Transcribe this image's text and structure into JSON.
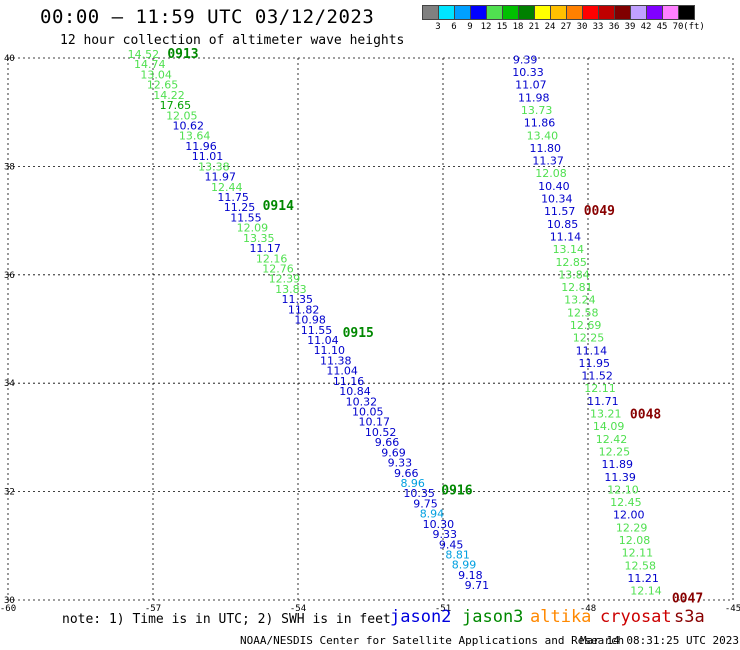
{
  "title": "00:00 – 11:59 UTC 03/12/2023",
  "subtitle": "12 hour collection of altimeter wave heights",
  "color_scale": {
    "labels": [
      "3",
      "6",
      "9",
      "12",
      "15",
      "18",
      "21",
      "24",
      "27",
      "30",
      "33",
      "36",
      "39",
      "42",
      "45",
      "70",
      "(ft)"
    ],
    "colors": [
      "#808080",
      "#00e5ff",
      "#00a0ff",
      "#0000ff",
      "#50e050",
      "#00c000",
      "#008000",
      "#ffff00",
      "#ffc000",
      "#ff8000",
      "#ff0000",
      "#c00000",
      "#800000",
      "#c0a0ff",
      "#8000ff",
      "#ff80ff",
      "#000000"
    ]
  },
  "note": "note: 1) Time is in UTC; 2) SWH is in feet",
  "satellites": [
    {
      "name": "jason2",
      "color": "#0000dd"
    },
    {
      "name": "jason3",
      "color": "#008800"
    },
    {
      "name": "altika",
      "color": "#ff8800"
    },
    {
      "name": "cryosat",
      "color": "#cc0000"
    },
    {
      "name": "s3a",
      "color": "#880000"
    }
  ],
  "footer_credit": "NOAA/NESDIS Center for Satellite Applications and Research",
  "footer_time": "Mar 14 08:31:25 UTC 2023",
  "chart_data": {
    "type": "scatter",
    "xlim": [
      -60,
      -45
    ],
    "ylim": [
      30,
      40
    ],
    "x_ticks": [
      "-60",
      "-57",
      "-54",
      "-51",
      "-48",
      "-45"
    ],
    "y_ticks": [
      "40",
      "38",
      "36",
      "34",
      "32",
      "30"
    ],
    "x_tick_values": [
      -60,
      -57,
      -54,
      -51,
      -48,
      -45
    ],
    "y_tick_values": [
      40,
      38,
      36,
      34,
      32,
      30
    ],
    "tracks": [
      {
        "satellite": "jason3",
        "lon_start": -57.2,
        "lat_start": 40.0,
        "lon_end": -50.3,
        "lat_end": 30.2,
        "times": [
          {
            "label": "0913",
            "lat": 40.0
          },
          {
            "label": "0914",
            "lat": 37.2
          },
          {
            "label": "0915",
            "lat": 34.85
          },
          {
            "label": "0916",
            "lat": 31.95
          }
        ],
        "points": [
          {
            "v": "14.52",
            "c": "#50e050"
          },
          {
            "v": "14.74",
            "c": "#50e050"
          },
          {
            "v": "13.04",
            "c": "#50e050"
          },
          {
            "v": "12.65",
            "c": "#50e050"
          },
          {
            "v": "14.22",
            "c": "#50e050"
          },
          {
            "v": "17.65",
            "c": "#00a000"
          },
          {
            "v": "12.05",
            "c": "#50e050"
          },
          {
            "v": "10.62",
            "c": "#0000cc"
          },
          {
            "v": "13.64",
            "c": "#50e050"
          },
          {
            "v": "11.96",
            "c": "#0000cc"
          },
          {
            "v": "11.01",
            "c": "#0000cc"
          },
          {
            "v": "13.38",
            "c": "#50e050"
          },
          {
            "v": "11.97",
            "c": "#0000cc"
          },
          {
            "v": "12.44",
            "c": "#50e050"
          },
          {
            "v": "11.75",
            "c": "#0000cc"
          },
          {
            "v": "11.25",
            "c": "#0000cc"
          },
          {
            "v": "11.55",
            "c": "#0000cc"
          },
          {
            "v": "12.09",
            "c": "#50e050"
          },
          {
            "v": "13.35",
            "c": "#50e050"
          },
          {
            "v": "11.17",
            "c": "#0000cc"
          },
          {
            "v": "12.16",
            "c": "#50e050"
          },
          {
            "v": "12.76",
            "c": "#50e050"
          },
          {
            "v": "12.39",
            "c": "#50e050"
          },
          {
            "v": "13.83",
            "c": "#50e050"
          },
          {
            "v": "11.35",
            "c": "#0000cc"
          },
          {
            "v": "11.82",
            "c": "#0000cc"
          },
          {
            "v": "10.98",
            "c": "#0000cc"
          },
          {
            "v": "11.55",
            "c": "#0000cc"
          },
          {
            "v": "11.04",
            "c": "#0000cc"
          },
          {
            "v": "11.10",
            "c": "#0000cc"
          },
          {
            "v": "11.38",
            "c": "#0000cc"
          },
          {
            "v": "11.04",
            "c": "#0000cc"
          },
          {
            "v": "11.16",
            "c": "#0000cc"
          },
          {
            "v": "10.84",
            "c": "#0000cc"
          },
          {
            "v": "10.32",
            "c": "#0000cc"
          },
          {
            "v": "10.05",
            "c": "#0000cc"
          },
          {
            "v": "10.17",
            "c": "#0000cc"
          },
          {
            "v": "10.52",
            "c": "#0000cc"
          },
          {
            "v": "9.66",
            "c": "#0000cc"
          },
          {
            "v": "9.69",
            "c": "#0000cc"
          },
          {
            "v": "9.33",
            "c": "#0000cc"
          },
          {
            "v": "9.66",
            "c": "#0000cc"
          },
          {
            "v": "8.96",
            "c": "#00a0e0"
          },
          {
            "v": "10.35",
            "c": "#0000cc"
          },
          {
            "v": "9.75",
            "c": "#0000cc"
          },
          {
            "v": "8.94",
            "c": "#00a0e0"
          },
          {
            "v": "10.30",
            "c": "#0000cc"
          },
          {
            "v": "9.33",
            "c": "#0000cc"
          },
          {
            "v": "9.45",
            "c": "#0000cc"
          },
          {
            "v": "8.81",
            "c": "#00a0e0"
          },
          {
            "v": "8.99",
            "c": "#00a0e0"
          },
          {
            "v": "9.18",
            "c": "#0000cc"
          },
          {
            "v": "9.71",
            "c": "#0000cc"
          }
        ]
      },
      {
        "satellite": "s3a",
        "lon_start": -49.3,
        "lat_start": 39.9,
        "lon_end": -46.8,
        "lat_end": 30.1,
        "times": [
          {
            "label": "0049",
            "lat": 37.1
          },
          {
            "label": "0048",
            "lat": 33.35
          },
          {
            "label": "0047",
            "lat": 29.95
          }
        ],
        "points": [
          {
            "v": "9.39",
            "c": "#0000cc"
          },
          {
            "v": "10.33",
            "c": "#0000cc"
          },
          {
            "v": "11.07",
            "c": "#0000cc"
          },
          {
            "v": "11.98",
            "c": "#0000cc"
          },
          {
            "v": "13.73",
            "c": "#50e050"
          },
          {
            "v": "11.86",
            "c": "#0000cc"
          },
          {
            "v": "13.40",
            "c": "#50e050"
          },
          {
            "v": "11.80",
            "c": "#0000cc"
          },
          {
            "v": "11.37",
            "c": "#0000cc"
          },
          {
            "v": "12.08",
            "c": "#50e050"
          },
          {
            "v": "10.40",
            "c": "#0000cc"
          },
          {
            "v": "10.34",
            "c": "#0000cc"
          },
          {
            "v": "11.57",
            "c": "#0000cc"
          },
          {
            "v": "10.85",
            "c": "#0000cc"
          },
          {
            "v": "11.14",
            "c": "#0000cc"
          },
          {
            "v": "13.14",
            "c": "#50e050"
          },
          {
            "v": "12.85",
            "c": "#50e050"
          },
          {
            "v": "13.84",
            "c": "#50e050"
          },
          {
            "v": "12.81",
            "c": "#50e050"
          },
          {
            "v": "13.24",
            "c": "#50e050"
          },
          {
            "v": "12.58",
            "c": "#50e050"
          },
          {
            "v": "12.69",
            "c": "#50e050"
          },
          {
            "v": "12.25",
            "c": "#50e050"
          },
          {
            "v": "11.14",
            "c": "#0000cc"
          },
          {
            "v": "11.95",
            "c": "#0000cc"
          },
          {
            "v": "11.52",
            "c": "#0000cc"
          },
          {
            "v": "12.11",
            "c": "#50e050"
          },
          {
            "v": "11.71",
            "c": "#0000cc"
          },
          {
            "v": "13.21",
            "c": "#50e050"
          },
          {
            "v": "14.09",
            "c": "#50e050"
          },
          {
            "v": "12.42",
            "c": "#50e050"
          },
          {
            "v": "12.25",
            "c": "#50e050"
          },
          {
            "v": "11.89",
            "c": "#0000cc"
          },
          {
            "v": "11.39",
            "c": "#0000cc"
          },
          {
            "v": "12.10",
            "c": "#50e050"
          },
          {
            "v": "12.45",
            "c": "#50e050"
          },
          {
            "v": "12.00",
            "c": "#0000cc"
          },
          {
            "v": "12.29",
            "c": "#50e050"
          },
          {
            "v": "12.08",
            "c": "#50e050"
          },
          {
            "v": "12.11",
            "c": "#50e050"
          },
          {
            "v": "12.58",
            "c": "#50e050"
          },
          {
            "v": "11.21",
            "c": "#0000cc"
          },
          {
            "v": "12.14",
            "c": "#50e050"
          }
        ]
      }
    ]
  }
}
